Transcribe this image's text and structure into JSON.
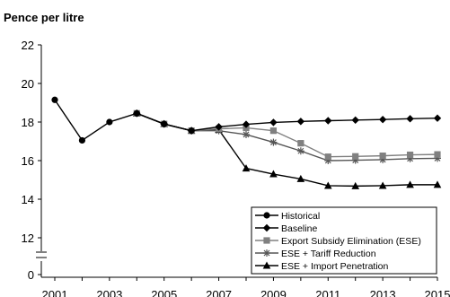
{
  "chart_data": {
    "type": "line",
    "title": "",
    "ylabel": "Pence per litre",
    "xlabel": "",
    "x": [
      2001,
      2002,
      2003,
      2004,
      2005,
      2006,
      2007,
      2008,
      2009,
      2010,
      2011,
      2012,
      2013,
      2014,
      2015
    ],
    "x_tick_labels": [
      "2001",
      "2003",
      "2005",
      "2007",
      "2009",
      "2011",
      "2013",
      "2015"
    ],
    "y_tick_labels": [
      "0",
      "12",
      "14",
      "16",
      "18",
      "20",
      "22"
    ],
    "y_axis_break": true,
    "ylim": [
      10.4,
      22
    ],
    "grid": false,
    "legend_position": "bottom-right",
    "series": [
      {
        "name": "Historical",
        "color": "#000000",
        "marker": "circle",
        "x": [
          2001,
          2002,
          2003,
          2004,
          2005,
          2006
        ],
        "values": [
          19.15,
          17.05,
          18.0,
          18.45,
          17.9,
          17.55
        ]
      },
      {
        "name": "Baseline",
        "color": "#000000",
        "marker": "diamond",
        "x": [
          2004,
          2005,
          2006,
          2007,
          2008,
          2009,
          2010,
          2011,
          2012,
          2013,
          2014,
          2015
        ],
        "values": [
          18.45,
          17.9,
          17.55,
          17.75,
          17.88,
          17.98,
          18.03,
          18.07,
          18.1,
          18.13,
          18.17,
          18.2
        ]
      },
      {
        "name": "Export Subsidy Elimination (ESE)",
        "color": "#808080",
        "marker": "square",
        "x": [
          2004,
          2005,
          2006,
          2007,
          2008,
          2009,
          2010,
          2011,
          2012,
          2013,
          2014,
          2015
        ],
        "values": [
          18.45,
          17.9,
          17.55,
          17.65,
          17.7,
          17.55,
          16.9,
          16.2,
          16.22,
          16.25,
          16.3,
          16.32
        ]
      },
      {
        "name": "ESE + Tariff Reduction",
        "color": "#555555",
        "marker": "star",
        "x": [
          2004,
          2005,
          2006,
          2007,
          2008,
          2009,
          2010,
          2011,
          2012,
          2013,
          2014,
          2015
        ],
        "values": [
          18.45,
          17.9,
          17.55,
          17.55,
          17.35,
          16.95,
          16.5,
          16.0,
          16.02,
          16.05,
          16.1,
          16.12
        ]
      },
      {
        "name": "ESE + Import Penetration",
        "color": "#000000",
        "marker": "triangle",
        "x": [
          2004,
          2005,
          2006,
          2007,
          2008,
          2009,
          2010,
          2011,
          2012,
          2013,
          2014,
          2015
        ],
        "values": [
          18.45,
          17.9,
          17.55,
          17.6,
          15.6,
          15.3,
          15.05,
          14.7,
          14.68,
          14.7,
          14.75,
          14.75
        ]
      }
    ]
  }
}
